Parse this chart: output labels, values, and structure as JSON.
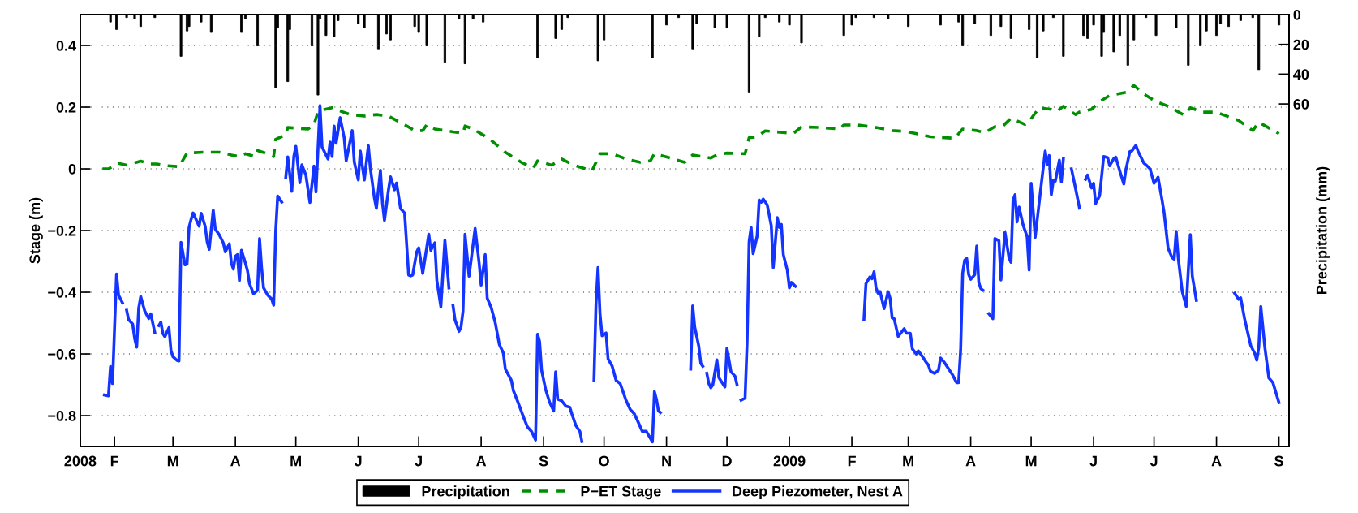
{
  "chart_data": {
    "type": "line",
    "ylabel": "Stage (m)",
    "y2label": "Precipitation (mm)",
    "xlim": [
      "2008-01-15",
      "2009-09-06"
    ],
    "xticks": [
      {
        "value": "2008-01-15",
        "label": "2008"
      },
      {
        "value": "2008-02-01",
        "label": "F"
      },
      {
        "value": "2008-03-01",
        "label": "M"
      },
      {
        "value": "2008-04-01",
        "label": "A"
      },
      {
        "value": "2008-05-01",
        "label": "M"
      },
      {
        "value": "2008-06-01",
        "label": "J"
      },
      {
        "value": "2008-07-01",
        "label": "J"
      },
      {
        "value": "2008-08-01",
        "label": "A"
      },
      {
        "value": "2008-09-01",
        "label": "S"
      },
      {
        "value": "2008-10-01",
        "label": "O"
      },
      {
        "value": "2008-11-01",
        "label": "N"
      },
      {
        "value": "2008-12-01",
        "label": "D"
      },
      {
        "value": "2009-01-01",
        "label": "2009"
      },
      {
        "value": "2009-02-01",
        "label": "F"
      },
      {
        "value": "2009-03-01",
        "label": "M"
      },
      {
        "value": "2009-04-01",
        "label": "A"
      },
      {
        "value": "2009-05-01",
        "label": "M"
      },
      {
        "value": "2009-06-01",
        "label": "J"
      },
      {
        "value": "2009-07-01",
        "label": "J"
      },
      {
        "value": "2009-08-01",
        "label": "A"
      },
      {
        "value": "2009-09-01",
        "label": "S"
      }
    ],
    "ylim": [
      -0.9,
      0.5
    ],
    "yticks": [
      -0.8,
      -0.6,
      -0.4,
      -0.2,
      0,
      0.2,
      0.4
    ],
    "y2lim": [
      290,
      0
    ],
    "y2ticks": [
      0,
      20,
      40,
      60
    ],
    "grid": "y",
    "legend": "bottom",
    "series": [
      {
        "name": "Precipitation",
        "type": "bar",
        "axis": "y2",
        "color": "#000000",
        "x": [
          "2008-01-30",
          "2008-02-02",
          "2008-02-07",
          "2008-02-11",
          "2008-02-14",
          "2008-02-21",
          "2008-03-05",
          "2008-03-08",
          "2008-03-09",
          "2008-03-15",
          "2008-03-20",
          "2008-04-04",
          "2008-04-06",
          "2008-04-12",
          "2008-04-21",
          "2008-04-22",
          "2008-04-27",
          "2008-04-28",
          "2008-05-09",
          "2008-05-12",
          "2008-05-13",
          "2008-05-16",
          "2008-05-20",
          "2008-05-22",
          "2008-06-01",
          "2008-06-04",
          "2008-06-11",
          "2008-06-15",
          "2008-06-17",
          "2008-06-29",
          "2008-07-01",
          "2008-07-05",
          "2008-07-14",
          "2008-07-21",
          "2008-07-24",
          "2008-07-28",
          "2008-08-02",
          "2008-08-29",
          "2008-09-07",
          "2008-09-10",
          "2008-09-13",
          "2008-09-28",
          "2008-10-01",
          "2008-10-25",
          "2008-11-01",
          "2008-11-07",
          "2008-11-14",
          "2008-11-16",
          "2008-11-25",
          "2008-12-01",
          "2008-12-12",
          "2008-12-17",
          "2008-12-20",
          "2008-12-27",
          "2009-01-01",
          "2009-01-07",
          "2009-01-28",
          "2009-02-01",
          "2009-02-03",
          "2009-02-12",
          "2009-02-19",
          "2009-03-01",
          "2009-03-17",
          "2009-03-26",
          "2009-03-28",
          "2009-04-03",
          "2009-04-11",
          "2009-04-16",
          "2009-04-21",
          "2009-04-30",
          "2009-05-04",
          "2009-05-07",
          "2009-05-12",
          "2009-05-17",
          "2009-05-27",
          "2009-05-29",
          "2009-06-01",
          "2009-06-05",
          "2009-06-06",
          "2009-06-11",
          "2009-06-14",
          "2009-06-18",
          "2009-06-21",
          "2009-06-27",
          "2009-07-02",
          "2009-07-12",
          "2009-07-18",
          "2009-07-24",
          "2009-07-27",
          "2009-08-01",
          "2009-08-03",
          "2009-08-07",
          "2009-08-13",
          "2009-08-19",
          "2009-08-22",
          "2009-09-01"
        ],
        "values": [
          5,
          10,
          2,
          3,
          8,
          2,
          28,
          11,
          8,
          5,
          12,
          12,
          3,
          21,
          49,
          9,
          45,
          10,
          21,
          54,
          3,
          14,
          15,
          4,
          6,
          9,
          23,
          13,
          17,
          8,
          12,
          21,
          32,
          3,
          33,
          3,
          5,
          29,
          16,
          10,
          2,
          31,
          17,
          29,
          7,
          2,
          23,
          6,
          9,
          9,
          52,
          15,
          2,
          5,
          7,
          19,
          14,
          7,
          2,
          2,
          3,
          8,
          7,
          5,
          21,
          6,
          14,
          8,
          16,
          10,
          29,
          11,
          2,
          28,
          14,
          16,
          7,
          28,
          12,
          25,
          14,
          34,
          17,
          2,
          14,
          9,
          34,
          21,
          11,
          14,
          6,
          8,
          4,
          2,
          37,
          7
        ]
      },
      {
        "name": "P−ET Stage",
        "line_style": "dashed",
        "color": "#008f00",
        "x": [
          "2008-01-26",
          "2008-01-29",
          "2008-02-03",
          "2008-02-07",
          "2008-02-14",
          "2008-02-19",
          "2008-02-22",
          "2008-02-27",
          "2008-03-04",
          "2008-03-08",
          "2008-03-16",
          "2008-03-24",
          "2008-03-30",
          "2008-04-03",
          "2008-04-06",
          "2008-04-11",
          "2008-04-12",
          "2008-04-19",
          "2008-04-20",
          "2008-04-21",
          "2008-04-26",
          "2008-04-27",
          "2008-05-07",
          "2008-05-10",
          "2008-05-12",
          "2008-05-15",
          "2008-05-19",
          "2008-05-22",
          "2008-05-28",
          "2008-06-04",
          "2008-06-10",
          "2008-06-16",
          "2008-06-24",
          "2008-06-29",
          "2008-07-03",
          "2008-07-05",
          "2008-07-09",
          "2008-07-18",
          "2008-07-23",
          "2008-07-24",
          "2008-07-28",
          "2008-08-05",
          "2008-08-13",
          "2008-08-21",
          "2008-08-27",
          "2008-08-29",
          "2008-09-05",
          "2008-09-10",
          "2008-09-16",
          "2008-09-25",
          "2008-09-29",
          "2008-10-05",
          "2008-10-12",
          "2008-10-19",
          "2008-10-24",
          "2008-10-26",
          "2008-11-03",
          "2008-11-10",
          "2008-11-14",
          "2008-11-23",
          "2008-11-26",
          "2008-12-01",
          "2008-12-10",
          "2008-12-12",
          "2008-12-16",
          "2008-12-20",
          "2008-12-30",
          "2009-01-03",
          "2009-01-07",
          "2009-01-16",
          "2009-01-26",
          "2009-01-28",
          "2009-02-04",
          "2009-02-13",
          "2009-02-21",
          "2009-02-28",
          "2009-03-12",
          "2009-03-24",
          "2009-03-28",
          "2009-04-04",
          "2009-04-08",
          "2009-04-13",
          "2009-04-17",
          "2009-04-21",
          "2009-04-28",
          "2009-04-30",
          "2009-05-05",
          "2009-05-11",
          "2009-05-14",
          "2009-05-17",
          "2009-05-23",
          "2009-05-25",
          "2009-05-31",
          "2009-06-04",
          "2009-06-09",
          "2009-06-13",
          "2009-06-17",
          "2009-06-21",
          "2009-06-27",
          "2009-07-02",
          "2009-07-08",
          "2009-07-16",
          "2009-07-19",
          "2009-07-25",
          "2009-08-01",
          "2009-08-04",
          "2009-08-12",
          "2009-08-19",
          "2009-08-22",
          "2009-09-01"
        ],
        "values": [
          0.0,
          0.0,
          0.018,
          0.012,
          0.025,
          0.016,
          0.016,
          0.01,
          0.007,
          0.051,
          0.054,
          0.054,
          0.045,
          0.04,
          0.049,
          0.04,
          0.059,
          0.045,
          0.04,
          0.096,
          0.11,
          0.134,
          0.129,
          0.143,
          0.185,
          0.192,
          0.198,
          0.19,
          0.176,
          0.171,
          0.176,
          0.171,
          0.143,
          0.124,
          0.124,
          0.143,
          0.129,
          0.12,
          0.115,
          0.139,
          0.129,
          0.098,
          0.054,
          0.021,
          0.003,
          0.026,
          0.012,
          0.032,
          0.012,
          -0.007,
          0.049,
          0.049,
          0.032,
          0.021,
          0.026,
          0.049,
          0.035,
          0.021,
          0.045,
          0.035,
          0.045,
          0.051,
          0.049,
          0.101,
          0.104,
          0.123,
          0.117,
          0.115,
          0.136,
          0.134,
          0.129,
          0.142,
          0.142,
          0.134,
          0.124,
          0.121,
          0.104,
          0.099,
          0.129,
          0.124,
          0.117,
          0.137,
          0.139,
          0.164,
          0.144,
          0.154,
          0.198,
          0.193,
          0.187,
          0.203,
          0.176,
          0.184,
          0.193,
          0.218,
          0.238,
          0.243,
          0.248,
          0.27,
          0.238,
          0.218,
          0.203,
          0.174,
          0.198,
          0.184,
          0.184,
          0.176,
          0.157,
          0.124,
          0.151,
          0.114
        ]
      },
      {
        "name": "Deep Piezometer, Nest A",
        "line_style": "solid",
        "color": "#1434ff",
        "x": [
          "2008-01-27",
          "2008-01-29",
          "2008-01-30",
          "2008-01-31",
          "2008-02-02",
          "2008-02-03",
          "2008-02-05",
          "2008-02-06",
          "2008-02-07",
          "2008-02-08",
          "2008-02-10",
          "2008-02-11",
          "2008-02-12",
          "2008-02-13",
          "2008-02-14",
          "2008-02-16",
          "2008-02-18",
          "2008-02-19",
          "2008-02-21",
          "2008-02-22",
          "2008-02-23",
          "2008-02-24",
          "2008-02-25",
          "2008-02-26",
          "2008-02-28",
          "2008-02-29",
          "2008-03-01",
          "2008-03-03",
          "2008-03-04",
          "2008-03-05",
          "2008-03-07",
          "2008-03-08",
          "2008-03-09",
          "2008-03-10",
          "2008-03-11",
          "2008-03-14",
          "2008-03-15",
          "2008-03-17",
          "2008-03-18",
          "2008-03-19",
          "2008-03-21",
          "2008-03-22",
          "2008-03-24",
          "2008-03-26",
          "2008-03-27",
          "2008-03-29",
          "2008-03-30",
          "2008-03-31",
          "2008-04-01",
          "2008-04-02",
          "2008-04-03",
          "2008-04-04",
          "2008-04-06",
          "2008-04-07",
          "2008-04-08",
          "2008-04-10",
          "2008-04-12",
          "2008-04-13",
          "2008-04-14",
          "2008-04-15",
          "2008-04-17",
          "2008-04-19",
          "2008-04-20",
          "2008-04-21",
          "2008-04-22",
          "2008-04-24",
          "2008-04-25",
          "2008-04-26",
          "2008-04-27",
          "2008-04-29",
          "2008-04-30",
          "2008-05-01",
          "2008-05-03",
          "2008-05-04",
          "2008-05-06",
          "2008-05-08",
          "2008-05-10",
          "2008-05-11",
          "2008-05-13",
          "2008-05-14",
          "2008-05-17",
          "2008-05-18",
          "2008-05-19",
          "2008-05-20",
          "2008-05-21",
          "2008-05-23",
          "2008-05-25",
          "2008-05-26",
          "2008-05-29",
          "2008-05-30",
          "2008-06-01",
          "2008-06-02",
          "2008-06-04",
          "2008-06-06",
          "2008-06-07",
          "2008-06-09",
          "2008-06-10",
          "2008-06-12",
          "2008-06-13",
          "2008-06-14",
          "2008-06-16",
          "2008-06-17",
          "2008-06-19",
          "2008-06-20",
          "2008-06-22",
          "2008-06-24",
          "2008-06-26",
          "2008-06-27",
          "2008-06-28",
          "2008-06-30",
          "2008-07-01",
          "2008-07-03",
          "2008-07-06",
          "2008-07-07",
          "2008-07-09",
          "2008-07-10",
          "2008-07-12",
          "2008-07-14",
          "2008-07-16",
          "2008-07-17",
          "2008-07-18",
          "2008-07-19",
          "2008-07-21",
          "2008-07-22",
          "2008-07-23",
          "2008-07-24",
          "2008-07-26",
          "2008-07-29",
          "2008-07-31",
          "2008-08-01",
          "2008-08-03",
          "2008-08-04",
          "2008-08-06",
          "2008-08-08",
          "2008-08-10",
          "2008-08-12",
          "2008-08-13",
          "2008-08-16",
          "2008-08-17",
          "2008-08-19",
          "2008-08-22",
          "2008-08-24",
          "2008-08-26",
          "2008-08-28",
          "2008-08-29",
          "2008-08-30",
          "2008-08-31",
          "2008-09-02",
          "2008-09-04",
          "2008-09-06",
          "2008-09-07",
          "2008-09-08",
          "2008-09-10",
          "2008-09-12",
          "2008-09-14",
          "2008-09-15",
          "2008-09-17",
          "2008-09-19",
          "2008-09-20",
          "2008-09-22",
          "2008-09-25",
          "2008-09-26",
          "2008-09-27",
          "2008-09-28",
          "2008-09-29",
          "2008-09-30",
          "2008-10-02",
          "2008-10-03",
          "2008-10-05",
          "2008-10-07",
          "2008-10-09",
          "2008-10-12",
          "2008-10-14",
          "2008-10-16",
          "2008-10-18",
          "2008-10-20",
          "2008-10-22",
          "2008-10-25",
          "2008-10-26",
          "2008-10-27",
          "2008-10-28",
          "2008-10-29",
          "2008-10-30",
          "2008-11-13",
          "2008-11-14",
          "2008-11-15",
          "2008-11-17",
          "2008-11-18",
          "2008-11-19",
          "2008-11-20",
          "2008-11-21",
          "2008-11-22",
          "2008-11-23",
          "2008-11-24",
          "2008-11-26",
          "2008-11-27",
          "2008-11-30",
          "2008-12-01",
          "2008-12-03",
          "2008-12-05",
          "2008-12-06",
          "2008-12-07",
          "2008-12-08",
          "2008-12-10",
          "2008-12-11",
          "2008-12-12",
          "2008-12-13",
          "2008-12-14",
          "2008-12-16",
          "2008-12-17",
          "2008-12-18",
          "2008-12-19",
          "2008-12-21",
          "2008-12-23",
          "2008-12-24",
          "2008-12-26",
          "2008-12-27",
          "2008-12-28",
          "2008-12-29",
          "2008-12-31",
          "2009-01-01",
          "2009-01-02",
          "2009-01-04",
          "2009-01-05",
          "2009-02-07",
          "2009-02-08",
          "2009-02-10",
          "2009-02-11",
          "2009-02-12",
          "2009-02-13",
          "2009-02-14",
          "2009-02-15",
          "2009-02-17",
          "2009-02-19",
          "2009-02-20",
          "2009-02-21",
          "2009-02-22",
          "2009-02-24",
          "2009-02-27",
          "2009-02-28",
          "2009-03-02",
          "2009-03-03",
          "2009-03-05",
          "2009-03-06",
          "2009-03-08",
          "2009-03-10",
          "2009-03-11",
          "2009-03-12",
          "2009-03-14",
          "2009-03-16",
          "2009-03-17",
          "2009-03-19",
          "2009-03-22",
          "2009-03-23",
          "2009-03-25",
          "2009-03-26",
          "2009-03-27",
          "2009-03-28",
          "2009-03-29",
          "2009-03-30",
          "2009-03-31",
          "2009-04-01",
          "2009-04-03",
          "2009-04-04",
          "2009-04-05",
          "2009-04-06",
          "2009-04-07",
          "2009-04-08",
          "2009-04-10",
          "2009-04-12",
          "2009-04-13",
          "2009-04-15",
          "2009-04-16",
          "2009-04-18",
          "2009-04-20",
          "2009-04-21",
          "2009-04-22",
          "2009-04-23",
          "2009-04-24",
          "2009-04-25",
          "2009-04-27",
          "2009-04-29",
          "2009-04-30",
          "2009-05-01",
          "2009-05-03",
          "2009-05-06",
          "2009-05-08",
          "2009-05-09",
          "2009-05-10",
          "2009-05-11",
          "2009-05-12",
          "2009-05-13",
          "2009-05-15",
          "2009-05-16",
          "2009-05-17",
          "2009-05-18",
          "2009-05-21",
          "2009-05-23",
          "2009-05-25",
          "2009-05-26",
          "2009-05-28",
          "2009-05-29",
          "2009-05-31",
          "2009-06-01",
          "2009-06-02",
          "2009-06-04",
          "2009-06-06",
          "2009-06-08",
          "2009-06-09",
          "2009-06-11",
          "2009-06-12",
          "2009-06-14",
          "2009-06-16",
          "2009-06-17",
          "2009-06-19",
          "2009-06-20",
          "2009-06-22",
          "2009-06-23",
          "2009-06-26",
          "2009-06-27",
          "2009-06-29",
          "2009-07-01",
          "2009-07-03",
          "2009-07-05",
          "2009-07-06",
          "2009-07-08",
          "2009-07-10",
          "2009-07-11",
          "2009-07-12",
          "2009-07-13",
          "2009-07-15",
          "2009-07-17",
          "2009-07-19",
          "2009-07-20",
          "2009-07-22",
          "2009-07-23",
          "2009-08-10",
          "2009-08-12",
          "2009-08-13",
          "2009-08-15",
          "2009-08-18",
          "2009-08-20",
          "2009-08-21",
          "2009-08-22",
          "2009-08-23",
          "2009-08-25",
          "2009-08-27",
          "2009-08-29",
          "2009-09-01"
        ],
        "values": [
          -0.733,
          -0.736,
          -0.641,
          -0.696,
          -0.341,
          -0.409,
          -0.435,
          null,
          -0.458,
          -0.489,
          -0.503,
          -0.55,
          -0.578,
          -0.452,
          -0.414,
          -0.461,
          -0.485,
          -0.47,
          -0.531,
          null,
          -0.508,
          -0.497,
          -0.534,
          -0.544,
          -0.515,
          -0.588,
          -0.609,
          -0.621,
          -0.623,
          -0.238,
          -0.311,
          -0.309,
          -0.19,
          -0.164,
          -0.143,
          -0.186,
          -0.144,
          -0.186,
          -0.237,
          -0.261,
          -0.134,
          -0.195,
          -0.214,
          -0.24,
          -0.269,
          -0.243,
          -0.306,
          -0.325,
          -0.283,
          -0.278,
          -0.362,
          -0.264,
          -0.306,
          -0.33,
          -0.372,
          -0.405,
          -0.394,
          -0.226,
          -0.32,
          -0.386,
          -0.409,
          -0.422,
          -0.442,
          -0.203,
          -0.088,
          -0.108,
          null,
          -0.028,
          0.039,
          -0.073,
          0.039,
          0.073,
          -0.045,
          0.013,
          -0.02,
          -0.109,
          0.009,
          -0.075,
          0.205,
          0.071,
          0.032,
          0.087,
          0.04,
          0.139,
          0.083,
          0.166,
          0.101,
          0.026,
          0.124,
          0.023,
          -0.036,
          0.058,
          -0.036,
          0.075,
          0.002,
          -0.095,
          -0.128,
          -0.005,
          -0.111,
          -0.167,
          -0.068,
          -0.026,
          -0.068,
          -0.046,
          -0.129,
          -0.143,
          -0.344,
          -0.347,
          -0.344,
          -0.269,
          -0.256,
          -0.339,
          -0.212,
          -0.264,
          -0.24,
          -0.362,
          -0.447,
          -0.231,
          -0.386,
          null,
          -0.442,
          -0.489,
          -0.527,
          -0.513,
          -0.461,
          -0.212,
          -0.348,
          -0.193,
          -0.306,
          -0.377,
          -0.278,
          -0.419,
          -0.45,
          -0.499,
          -0.569,
          -0.597,
          -0.649,
          -0.686,
          -0.719,
          -0.752,
          -0.804,
          -0.837,
          -0.851,
          -0.879,
          -0.536,
          -0.56,
          -0.653,
          -0.715,
          -0.757,
          -0.785,
          -0.658,
          -0.747,
          -0.752,
          -0.769,
          -0.773,
          -0.794,
          -0.832,
          -0.851,
          -0.884,
          null,
          null,
          -0.686,
          -0.438,
          -0.32,
          -0.47,
          -0.541,
          -0.532,
          -0.616,
          -0.639,
          -0.686,
          -0.696,
          -0.752,
          -0.78,
          -0.794,
          -0.822,
          -0.851,
          -0.851,
          -0.885,
          -0.722,
          -0.747,
          -0.785,
          -0.79,
          null,
          -0.649,
          -0.444,
          -0.513,
          -0.574,
          -0.63,
          -0.64,
          null,
          -0.663,
          -0.696,
          -0.71,
          -0.7,
          -0.619,
          -0.677,
          -0.707,
          -0.581,
          -0.658,
          -0.672,
          -0.7,
          null,
          -0.75,
          -0.743,
          -0.564,
          -0.236,
          -0.19,
          -0.275,
          -0.217,
          -0.101,
          -0.108,
          -0.098,
          -0.117,
          -0.184,
          -0.32,
          -0.158,
          -0.19,
          -0.18,
          -0.278,
          -0.33,
          -0.386,
          -0.368,
          -0.381,
          null,
          -0.489,
          -0.372,
          -0.35,
          -0.356,
          -0.334,
          -0.386,
          -0.403,
          -0.398,
          -0.453,
          -0.398,
          -0.42,
          -0.483,
          -0.486,
          -0.543,
          -0.518,
          -0.533,
          -0.533,
          -0.583,
          -0.6,
          -0.59,
          -0.608,
          -0.628,
          -0.636,
          -0.656,
          -0.663,
          -0.653,
          -0.613,
          -0.628,
          -0.658,
          -0.668,
          -0.693,
          -0.693,
          -0.588,
          -0.338,
          -0.296,
          -0.29,
          -0.343,
          -0.358,
          -0.343,
          -0.25,
          -0.368,
          -0.388,
          -0.393,
          null,
          -0.47,
          -0.486,
          -0.226,
          -0.233,
          -0.36,
          -0.206,
          -0.288,
          -0.303,
          -0.102,
          -0.084,
          -0.172,
          -0.124,
          -0.182,
          -0.22,
          -0.328,
          -0.047,
          -0.222,
          -0.052,
          0.058,
          0.013,
          0.043,
          -0.084,
          -0.037,
          -0.04,
          0.028,
          -0.042,
          0.033,
          null,
          0.0,
          -0.062,
          -0.127,
          null,
          -0.034,
          -0.02,
          -0.062,
          -0.047,
          -0.112,
          -0.087,
          0.04,
          0.036,
          0.01,
          0.033,
          0.038,
          -0.007,
          -0.049,
          -0.004,
          0.056,
          0.058,
          0.076,
          0.058,
          0.018,
          0.013,
          0.0,
          -0.047,
          -0.027,
          -0.102,
          -0.142,
          -0.258,
          -0.288,
          -0.293,
          -0.203,
          -0.288,
          -0.398,
          -0.446,
          -0.213,
          -0.348,
          -0.426,
          null,
          -0.403,
          -0.423,
          -0.418,
          -0.488,
          -0.573,
          -0.598,
          -0.62,
          -0.578,
          -0.446,
          -0.578,
          -0.678,
          -0.693,
          -0.758
        ]
      }
    ]
  }
}
